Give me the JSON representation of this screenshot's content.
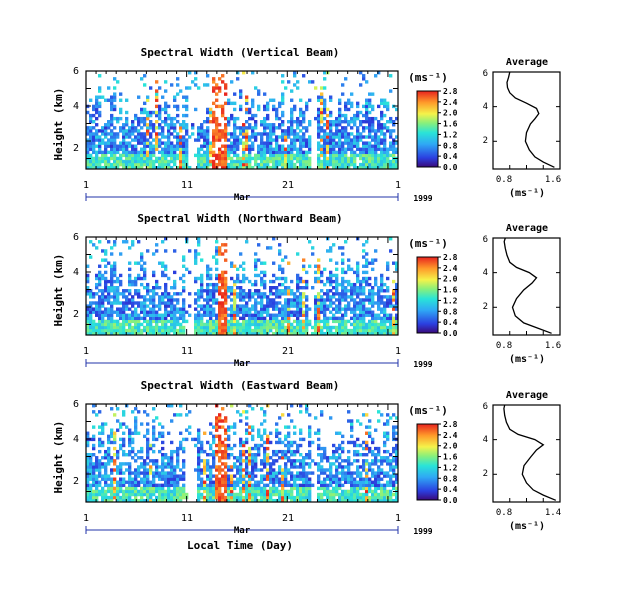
{
  "figure": {
    "xlabel": "Local Time (Day)"
  },
  "panels": [
    {
      "title": "Spectral Width (Vertical Beam)",
      "ylabel": "Height (km)",
      "yticks": [
        "2",
        "4",
        "6"
      ],
      "xticks": [
        "1",
        "11",
        "21",
        "1"
      ],
      "month": "Mar",
      "year": "1999",
      "colorbar_unit": "(ms⁻¹)",
      "colorbar_ticks": [
        "0.0",
        "0.4",
        "0.8",
        "1.2",
        "1.6",
        "2.0",
        "2.4",
        "2.8"
      ],
      "avg_title": "Average",
      "avg_yticks": [
        "2",
        "4",
        "6"
      ],
      "avg_xticks": [
        "0.8",
        "1.6"
      ],
      "avg_xlabel": "(ms⁻¹)"
    },
    {
      "title": "Spectral Width (Northward Beam)",
      "ylabel": "Height (km)",
      "yticks": [
        "2",
        "4",
        "6"
      ],
      "xticks": [
        "1",
        "11",
        "21",
        "1"
      ],
      "month": "Mar",
      "year": "1999",
      "colorbar_unit": "(ms⁻¹)",
      "colorbar_ticks": [
        "0.0",
        "0.4",
        "0.8",
        "1.2",
        "1.6",
        "2.0",
        "2.4",
        "2.8"
      ],
      "avg_title": "Average",
      "avg_yticks": [
        "2",
        "4",
        "6"
      ],
      "avg_xticks": [
        "0.8",
        "1.6"
      ],
      "avg_xlabel": "(ms⁻¹)"
    },
    {
      "title": "Spectral Width (Eastward Beam)",
      "ylabel": "Height (km)",
      "yticks": [
        "2",
        "4",
        "6"
      ],
      "xticks": [
        "1",
        "11",
        "21",
        "1"
      ],
      "month": "Mar",
      "year": "1999",
      "colorbar_unit": "(ms⁻¹)",
      "colorbar_ticks": [
        "0.0",
        "0.4",
        "0.8",
        "1.2",
        "1.6",
        "2.0",
        "2.4",
        "2.8"
      ],
      "avg_title": "Average",
      "avg_yticks": [
        "2",
        "4",
        "6"
      ],
      "avg_xticks": [
        "0.8",
        "1.4"
      ],
      "avg_xlabel": "(ms⁻¹)"
    }
  ],
  "chart_data": [
    {
      "type": "heatmap",
      "title": "Spectral Width (Vertical Beam)",
      "ylabel": "Height (km)",
      "xlim_day": [
        1,
        32
      ],
      "ylim_km": [
        0.4,
        6.0
      ],
      "clim": [
        0.0,
        2.8
      ],
      "colormap": "jet",
      "seed": 11,
      "red_bands_day": [
        [
          13.5,
          15.0
        ]
      ],
      "gap_days": [
        [
          11.0,
          12.0
        ],
        [
          23.5,
          24.0
        ]
      ],
      "average_profile": {
        "type": "line",
        "title": "Average",
        "xlim": [
          0.6,
          1.8
        ],
        "ylim": [
          0.4,
          6.0
        ],
        "height_km": [
          0.5,
          0.8,
          1.1,
          1.5,
          2.0,
          2.5,
          3.0,
          3.3,
          3.6,
          3.9,
          4.2,
          4.5,
          4.8,
          5.1,
          5.4,
          5.7,
          6.0
        ],
        "width_ms": [
          1.7,
          1.5,
          1.35,
          1.25,
          1.18,
          1.2,
          1.27,
          1.35,
          1.42,
          1.38,
          1.2,
          1.0,
          0.9,
          0.86,
          0.85,
          0.88,
          0.9
        ]
      }
    },
    {
      "type": "heatmap",
      "title": "Spectral Width (Northward Beam)",
      "ylabel": "Height (km)",
      "xlim_day": [
        1,
        32
      ],
      "ylim_km": [
        0.4,
        6.0
      ],
      "clim": [
        0.0,
        2.8
      ],
      "colormap": "jet",
      "seed": 23,
      "red_bands_day": [
        [
          14.0,
          15.0
        ]
      ],
      "gap_days": [
        [
          10.8,
          11.8
        ],
        [
          23.0,
          23.7
        ]
      ],
      "average_profile": {
        "type": "line",
        "title": "Average",
        "xlim": [
          0.6,
          1.8
        ],
        "ylim": [
          0.4,
          6.0
        ],
        "height_km": [
          0.5,
          0.8,
          1.1,
          1.5,
          2.0,
          2.5,
          3.0,
          3.4,
          3.7,
          4.0,
          4.3,
          4.6,
          5.0,
          5.4,
          5.8,
          6.0
        ],
        "width_ms": [
          1.65,
          1.4,
          1.15,
          1.0,
          0.95,
          1.02,
          1.15,
          1.3,
          1.38,
          1.25,
          1.02,
          0.9,
          0.85,
          0.82,
          0.8,
          0.82
        ]
      }
    },
    {
      "type": "heatmap",
      "title": "Spectral Width (Eastward Beam)",
      "ylabel": "Height (km)",
      "xlim_day": [
        1,
        32
      ],
      "ylim_km": [
        0.4,
        6.0
      ],
      "clim": [
        0.0,
        2.8
      ],
      "colormap": "jet",
      "seed": 37,
      "red_bands_day": [
        [
          13.8,
          15.0
        ]
      ],
      "gap_days": [
        [
          10.9,
          12.0
        ],
        [
          23.4,
          23.9
        ]
      ],
      "average_profile": {
        "type": "line",
        "title": "Average",
        "xlim": [
          0.7,
          1.5
        ],
        "ylim": [
          0.4,
          6.0
        ],
        "height_km": [
          0.5,
          0.8,
          1.1,
          1.5,
          2.0,
          2.5,
          3.0,
          3.4,
          3.7,
          4.0,
          4.3,
          4.6,
          5.0,
          5.4,
          5.8,
          6.0
        ],
        "width_ms": [
          1.45,
          1.3,
          1.18,
          1.1,
          1.05,
          1.07,
          1.15,
          1.22,
          1.3,
          1.2,
          1.0,
          0.9,
          0.86,
          0.84,
          0.83,
          0.84
        ]
      }
    }
  ]
}
